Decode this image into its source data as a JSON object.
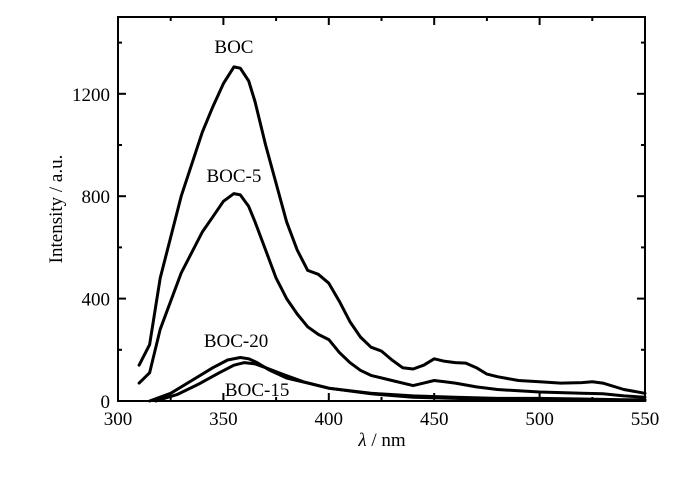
{
  "chart_data": {
    "type": "line",
    "title": "",
    "xlabel_symbol": "λ",
    "xlabel_rest": "/ nm",
    "ylabel": "Intensity / a.u.",
    "xlim": [
      300,
      550
    ],
    "ylim": [
      0,
      1500
    ],
    "x_ticks": [
      300,
      350,
      400,
      450,
      500,
      550
    ],
    "y_ticks": [
      0,
      400,
      800,
      1200
    ],
    "grid": false,
    "series": [
      {
        "name": "BOC",
        "x": [
          310,
          315,
          320,
          330,
          340,
          345,
          350,
          355,
          358,
          362,
          365,
          370,
          375,
          380,
          385,
          390,
          395,
          400,
          405,
          410,
          415,
          420,
          425,
          430,
          435,
          440,
          445,
          450,
          455,
          460,
          465,
          470,
          475,
          480,
          490,
          500,
          510,
          520,
          525,
          530,
          540,
          550
        ],
        "y": [
          140,
          220,
          480,
          800,
          1050,
          1150,
          1240,
          1305,
          1300,
          1250,
          1170,
          1000,
          850,
          700,
          590,
          510,
          495,
          460,
          390,
          310,
          250,
          210,
          195,
          160,
          130,
          125,
          140,
          165,
          155,
          150,
          148,
          130,
          105,
          95,
          80,
          75,
          70,
          72,
          75,
          70,
          45,
          30
        ],
        "label_x": 355,
        "label_y": 1360
      },
      {
        "name": "BOC-5",
        "x": [
          310,
          315,
          320,
          330,
          340,
          345,
          350,
          355,
          358,
          362,
          365,
          370,
          375,
          380,
          385,
          390,
          395,
          400,
          405,
          410,
          415,
          420,
          430,
          440,
          445,
          450,
          455,
          460,
          470,
          480,
          490,
          500,
          520,
          530,
          540,
          550
        ],
        "y": [
          70,
          110,
          280,
          500,
          660,
          720,
          780,
          810,
          805,
          760,
          700,
          590,
          480,
          400,
          340,
          290,
          260,
          240,
          190,
          150,
          120,
          100,
          80,
          60,
          70,
          80,
          75,
          70,
          55,
          45,
          40,
          35,
          30,
          28,
          20,
          15
        ],
        "label_x": 355,
        "label_y": 855
      },
      {
        "name": "BOC-20",
        "x": [
          315,
          325,
          335,
          345,
          352,
          358,
          362,
          366,
          372,
          380,
          390,
          400,
          420,
          440,
          460,
          480,
          500,
          520,
          540,
          550
        ],
        "y": [
          0,
          30,
          80,
          130,
          160,
          170,
          165,
          150,
          120,
          90,
          70,
          50,
          30,
          20,
          15,
          10,
          10,
          8,
          5,
          5
        ],
        "label_x": 356,
        "label_y": 210
      },
      {
        "name": "BOC-15",
        "x": [
          318,
          328,
          338,
          348,
          355,
          360,
          365,
          370,
          378,
          388,
          400,
          420,
          440,
          460,
          480,
          500,
          520,
          540,
          550
        ],
        "y": [
          0,
          25,
          65,
          110,
          140,
          150,
          145,
          130,
          105,
          75,
          50,
          28,
          15,
          10,
          6,
          5,
          4,
          3,
          2
        ],
        "label_x": 366,
        "label_y": 20
      }
    ]
  }
}
